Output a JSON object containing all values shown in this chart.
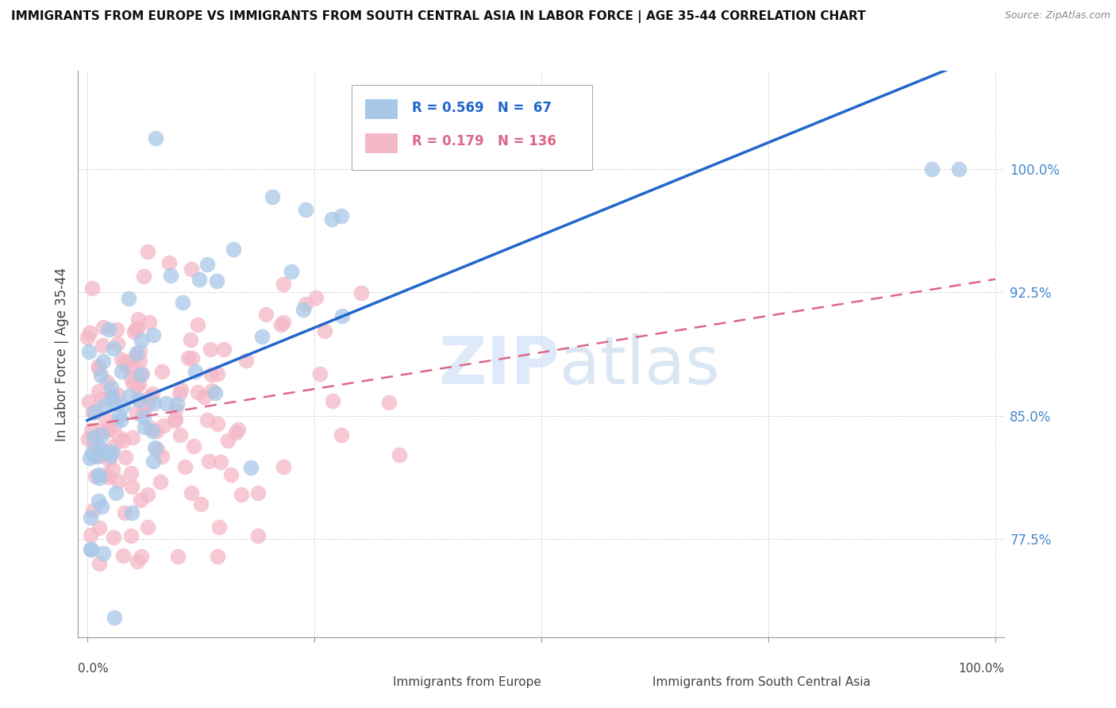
{
  "title": "IMMIGRANTS FROM EUROPE VS IMMIGRANTS FROM SOUTH CENTRAL ASIA IN LABOR FORCE | AGE 35-44 CORRELATION CHART",
  "source": "Source: ZipAtlas.com",
  "ylabel": "In Labor Force | Age 35-44",
  "legend_label_blue": "Immigrants from Europe",
  "legend_label_pink": "Immigrants from South Central Asia",
  "R_blue": 0.569,
  "N_blue": 67,
  "R_pink": 0.179,
  "N_pink": 136,
  "xlim": [
    -0.01,
    1.01
  ],
  "ylim": [
    0.715,
    1.06
  ],
  "yticks": [
    0.775,
    0.85,
    0.925,
    1.0
  ],
  "yticklabels": [
    "77.5%",
    "85.0%",
    "92.5%",
    "100.0%"
  ],
  "color_blue": "#a8c8e8",
  "color_pink": "#f4b8c8",
  "trend_blue": "#2266cc",
  "trend_pink": "#dd6688",
  "watermark_zip": "ZIP",
  "watermark_atlas": "atlas",
  "watermark_color_zip": "#c8dff0",
  "watermark_color_atlas": "#b8cce0",
  "ytick_color": "#4488cc"
}
